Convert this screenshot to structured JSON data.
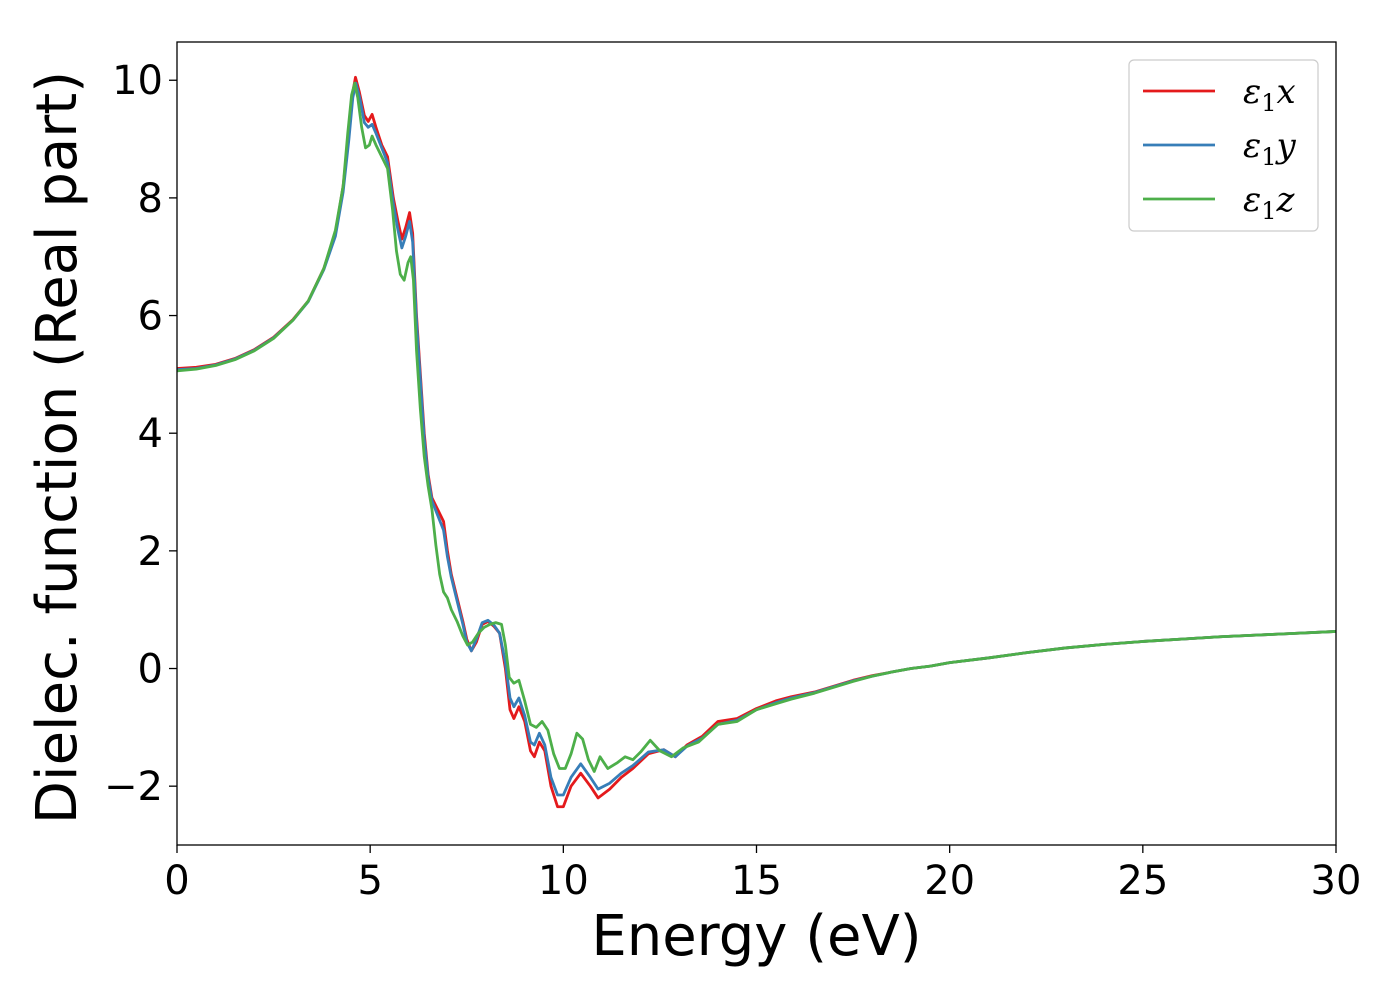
{
  "chart_data": {
    "type": "line",
    "title": "",
    "xlabel": "Energy (eV)",
    "ylabel": "Dielec. function (Real part)",
    "xlim": [
      0,
      30
    ],
    "ylim": [
      -3,
      10.65
    ],
    "x_ticks": [
      0,
      5,
      10,
      15,
      20,
      25,
      30
    ],
    "x_tick_labels": [
      "0",
      "5",
      "10",
      "15",
      "20",
      "25",
      "30"
    ],
    "y_ticks": [
      -2,
      0,
      2,
      4,
      6,
      8,
      10
    ],
    "y_tick_labels": [
      "−2",
      "0",
      "2",
      "4",
      "6",
      "8",
      "10"
    ],
    "grid": false,
    "legend_position": "top-right",
    "series": [
      {
        "name": "ε₁x",
        "legend": {
          "base": "ε",
          "sub": "1",
          "var": "x"
        },
        "color": "#e41a1c",
        "points": [
          [
            0,
            5.1
          ],
          [
            0.5,
            5.12
          ],
          [
            1,
            5.17
          ],
          [
            1.5,
            5.27
          ],
          [
            2,
            5.42
          ],
          [
            2.5,
            5.63
          ],
          [
            3,
            5.93
          ],
          [
            3.4,
            6.25
          ],
          [
            3.8,
            6.8
          ],
          [
            4.1,
            7.4
          ],
          [
            4.3,
            8.2
          ],
          [
            4.45,
            9.1
          ],
          [
            4.55,
            9.8
          ],
          [
            4.62,
            10.05
          ],
          [
            4.72,
            9.8
          ],
          [
            4.85,
            9.4
          ],
          [
            4.95,
            9.3
          ],
          [
            5.05,
            9.42
          ],
          [
            5.15,
            9.2
          ],
          [
            5.3,
            8.9
          ],
          [
            5.45,
            8.7
          ],
          [
            5.6,
            8.0
          ],
          [
            5.72,
            7.6
          ],
          [
            5.82,
            7.3
          ],
          [
            5.92,
            7.5
          ],
          [
            6.02,
            7.75
          ],
          [
            6.1,
            7.4
          ],
          [
            6.2,
            6.0
          ],
          [
            6.3,
            5.0
          ],
          [
            6.4,
            4.0
          ],
          [
            6.5,
            3.3
          ],
          [
            6.6,
            2.9
          ],
          [
            6.75,
            2.7
          ],
          [
            6.9,
            2.5
          ],
          [
            7.0,
            2.0
          ],
          [
            7.1,
            1.6
          ],
          [
            7.25,
            1.2
          ],
          [
            7.4,
            0.8
          ],
          [
            7.5,
            0.5
          ],
          [
            7.62,
            0.3
          ],
          [
            7.75,
            0.45
          ],
          [
            7.9,
            0.75
          ],
          [
            8.05,
            0.8
          ],
          [
            8.2,
            0.72
          ],
          [
            8.35,
            0.6
          ],
          [
            8.5,
            0.0
          ],
          [
            8.62,
            -0.7
          ],
          [
            8.72,
            -0.85
          ],
          [
            8.85,
            -0.65
          ],
          [
            9.0,
            -0.9
          ],
          [
            9.15,
            -1.4
          ],
          [
            9.25,
            -1.5
          ],
          [
            9.38,
            -1.25
          ],
          [
            9.52,
            -1.4
          ],
          [
            9.68,
            -2.0
          ],
          [
            9.85,
            -2.35
          ],
          [
            10.0,
            -2.35
          ],
          [
            10.2,
            -2.0
          ],
          [
            10.45,
            -1.78
          ],
          [
            10.7,
            -2.0
          ],
          [
            10.9,
            -2.2
          ],
          [
            11.2,
            -2.05
          ],
          [
            11.5,
            -1.85
          ],
          [
            11.8,
            -1.7
          ],
          [
            12.2,
            -1.45
          ],
          [
            12.6,
            -1.38
          ],
          [
            12.9,
            -1.5
          ],
          [
            13.2,
            -1.3
          ],
          [
            13.6,
            -1.15
          ],
          [
            14.0,
            -0.9
          ],
          [
            14.5,
            -0.85
          ],
          [
            15.0,
            -0.68
          ],
          [
            15.5,
            -0.55
          ],
          [
            15.9,
            -0.48
          ],
          [
            16.5,
            -0.4
          ],
          [
            17.0,
            -0.3
          ],
          [
            17.5,
            -0.2
          ],
          [
            18.0,
            -0.12
          ],
          [
            18.5,
            -0.06
          ],
          [
            19.0,
            0.0
          ],
          [
            19.5,
            0.04
          ],
          [
            20,
            0.1
          ],
          [
            21,
            0.18
          ],
          [
            22,
            0.27
          ],
          [
            23,
            0.35
          ],
          [
            24,
            0.41
          ],
          [
            25,
            0.46
          ],
          [
            26,
            0.5
          ],
          [
            27,
            0.54
          ],
          [
            28,
            0.57
          ],
          [
            29,
            0.6
          ],
          [
            30,
            0.63
          ]
        ]
      },
      {
        "name": "ε₁y",
        "legend": {
          "base": "ε",
          "sub": "1",
          "var": "y"
        },
        "color": "#377eb8",
        "points": [
          [
            0,
            5.08
          ],
          [
            0.5,
            5.1
          ],
          [
            1,
            5.16
          ],
          [
            1.5,
            5.26
          ],
          [
            2,
            5.41
          ],
          [
            2.5,
            5.62
          ],
          [
            3,
            5.92
          ],
          [
            3.4,
            6.24
          ],
          [
            3.8,
            6.78
          ],
          [
            4.1,
            7.35
          ],
          [
            4.3,
            8.1
          ],
          [
            4.45,
            9.0
          ],
          [
            4.55,
            9.7
          ],
          [
            4.63,
            9.95
          ],
          [
            4.73,
            9.7
          ],
          [
            4.85,
            9.28
          ],
          [
            4.95,
            9.2
          ],
          [
            5.05,
            9.25
          ],
          [
            5.15,
            9.1
          ],
          [
            5.3,
            8.85
          ],
          [
            5.45,
            8.6
          ],
          [
            5.6,
            7.9
          ],
          [
            5.72,
            7.45
          ],
          [
            5.82,
            7.15
          ],
          [
            5.92,
            7.35
          ],
          [
            6.02,
            7.6
          ],
          [
            6.1,
            7.25
          ],
          [
            6.2,
            5.9
          ],
          [
            6.3,
            4.9
          ],
          [
            6.4,
            3.9
          ],
          [
            6.5,
            3.25
          ],
          [
            6.6,
            2.85
          ],
          [
            6.75,
            2.6
          ],
          [
            6.9,
            2.35
          ],
          [
            7.0,
            1.9
          ],
          [
            7.1,
            1.55
          ],
          [
            7.25,
            1.15
          ],
          [
            7.4,
            0.75
          ],
          [
            7.5,
            0.45
          ],
          [
            7.62,
            0.3
          ],
          [
            7.75,
            0.5
          ],
          [
            7.9,
            0.78
          ],
          [
            8.05,
            0.82
          ],
          [
            8.2,
            0.74
          ],
          [
            8.35,
            0.6
          ],
          [
            8.5,
            0.1
          ],
          [
            8.62,
            -0.5
          ],
          [
            8.72,
            -0.65
          ],
          [
            8.85,
            -0.5
          ],
          [
            9.0,
            -0.8
          ],
          [
            9.15,
            -1.25
          ],
          [
            9.25,
            -1.3
          ],
          [
            9.38,
            -1.1
          ],
          [
            9.52,
            -1.3
          ],
          [
            9.68,
            -1.85
          ],
          [
            9.85,
            -2.15
          ],
          [
            10.0,
            -2.15
          ],
          [
            10.2,
            -1.85
          ],
          [
            10.45,
            -1.62
          ],
          [
            10.7,
            -1.85
          ],
          [
            10.9,
            -2.05
          ],
          [
            11.2,
            -1.95
          ],
          [
            11.5,
            -1.78
          ],
          [
            11.8,
            -1.65
          ],
          [
            12.2,
            -1.42
          ],
          [
            12.6,
            -1.38
          ],
          [
            12.9,
            -1.5
          ],
          [
            13.2,
            -1.32
          ],
          [
            13.6,
            -1.18
          ],
          [
            14.0,
            -0.95
          ],
          [
            14.5,
            -0.88
          ],
          [
            15.0,
            -0.7
          ],
          [
            15.5,
            -0.58
          ],
          [
            15.9,
            -0.5
          ],
          [
            16.5,
            -0.41
          ],
          [
            17.0,
            -0.31
          ],
          [
            17.5,
            -0.21
          ],
          [
            18.0,
            -0.13
          ],
          [
            18.5,
            -0.06
          ],
          [
            19.0,
            0.0
          ],
          [
            19.5,
            0.04
          ],
          [
            20,
            0.1
          ],
          [
            21,
            0.18
          ],
          [
            22,
            0.27
          ],
          [
            23,
            0.35
          ],
          [
            24,
            0.41
          ],
          [
            25,
            0.46
          ],
          [
            26,
            0.5
          ],
          [
            27,
            0.54
          ],
          [
            28,
            0.57
          ],
          [
            29,
            0.6
          ],
          [
            30,
            0.63
          ]
        ]
      },
      {
        "name": "ε₁z",
        "legend": {
          "base": "ε",
          "sub": "1",
          "var": "z"
        },
        "color": "#4daf4a",
        "points": [
          [
            0,
            5.06
          ],
          [
            0.5,
            5.09
          ],
          [
            1,
            5.15
          ],
          [
            1.5,
            5.25
          ],
          [
            2,
            5.4
          ],
          [
            2.5,
            5.61
          ],
          [
            3,
            5.92
          ],
          [
            3.4,
            6.25
          ],
          [
            3.8,
            6.8
          ],
          [
            4.1,
            7.45
          ],
          [
            4.3,
            8.2
          ],
          [
            4.42,
            9.1
          ],
          [
            4.52,
            9.75
          ],
          [
            4.6,
            9.95
          ],
          [
            4.68,
            9.7
          ],
          [
            4.78,
            9.2
          ],
          [
            4.88,
            8.85
          ],
          [
            4.98,
            8.9
          ],
          [
            5.05,
            9.05
          ],
          [
            5.15,
            8.9
          ],
          [
            5.3,
            8.7
          ],
          [
            5.45,
            8.5
          ],
          [
            5.58,
            7.8
          ],
          [
            5.68,
            7.1
          ],
          [
            5.78,
            6.7
          ],
          [
            5.88,
            6.6
          ],
          [
            5.98,
            6.9
          ],
          [
            6.05,
            7.0
          ],
          [
            6.12,
            6.6
          ],
          [
            6.2,
            5.4
          ],
          [
            6.3,
            4.4
          ],
          [
            6.4,
            3.6
          ],
          [
            6.5,
            3.1
          ],
          [
            6.6,
            2.7
          ],
          [
            6.7,
            2.1
          ],
          [
            6.8,
            1.6
          ],
          [
            6.9,
            1.3
          ],
          [
            7.0,
            1.2
          ],
          [
            7.1,
            1.0
          ],
          [
            7.25,
            0.8
          ],
          [
            7.4,
            0.55
          ],
          [
            7.52,
            0.4
          ],
          [
            7.65,
            0.45
          ],
          [
            7.8,
            0.6
          ],
          [
            7.95,
            0.7
          ],
          [
            8.1,
            0.75
          ],
          [
            8.25,
            0.78
          ],
          [
            8.4,
            0.75
          ],
          [
            8.5,
            0.4
          ],
          [
            8.6,
            -0.15
          ],
          [
            8.72,
            -0.25
          ],
          [
            8.85,
            -0.2
          ],
          [
            9.0,
            -0.55
          ],
          [
            9.15,
            -0.95
          ],
          [
            9.3,
            -1.0
          ],
          [
            9.45,
            -0.9
          ],
          [
            9.6,
            -1.05
          ],
          [
            9.75,
            -1.45
          ],
          [
            9.9,
            -1.7
          ],
          [
            10.05,
            -1.7
          ],
          [
            10.2,
            -1.45
          ],
          [
            10.35,
            -1.1
          ],
          [
            10.5,
            -1.2
          ],
          [
            10.65,
            -1.55
          ],
          [
            10.8,
            -1.75
          ],
          [
            10.95,
            -1.5
          ],
          [
            11.15,
            -1.7
          ],
          [
            11.4,
            -1.6
          ],
          [
            11.6,
            -1.5
          ],
          [
            11.8,
            -1.55
          ],
          [
            12.0,
            -1.42
          ],
          [
            12.25,
            -1.22
          ],
          [
            12.5,
            -1.4
          ],
          [
            12.8,
            -1.5
          ],
          [
            13.1,
            -1.35
          ],
          [
            13.5,
            -1.25
          ],
          [
            14.0,
            -0.95
          ],
          [
            14.5,
            -0.9
          ],
          [
            15.0,
            -0.7
          ],
          [
            15.5,
            -0.6
          ],
          [
            15.9,
            -0.52
          ],
          [
            16.5,
            -0.42
          ],
          [
            17.0,
            -0.32
          ],
          [
            17.5,
            -0.22
          ],
          [
            18.0,
            -0.13
          ],
          [
            18.5,
            -0.06
          ],
          [
            19.0,
            0.0
          ],
          [
            19.5,
            0.04
          ],
          [
            20,
            0.1
          ],
          [
            21,
            0.18
          ],
          [
            22,
            0.27
          ],
          [
            23,
            0.35
          ],
          [
            24,
            0.41
          ],
          [
            25,
            0.46
          ],
          [
            26,
            0.5
          ],
          [
            27,
            0.54
          ],
          [
            28,
            0.57
          ],
          [
            29,
            0.6
          ],
          [
            30,
            0.63
          ]
        ]
      }
    ]
  }
}
